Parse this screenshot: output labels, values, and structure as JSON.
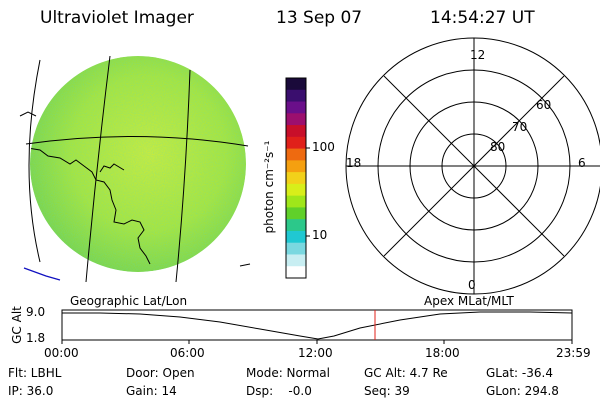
{
  "header": {
    "instrument": "Ultraviolet Imager",
    "date": "13 Sep 07",
    "time": "14:54:27 UT"
  },
  "colorbar": {
    "unit_label": "photon cm⁻²s⁻¹",
    "tick_labels": [
      "100",
      "10"
    ],
    "colors": [
      "#1a0a3a",
      "#3a0e6e",
      "#6a0f8a",
      "#9c0f6e",
      "#c80f2a",
      "#e0201a",
      "#ee6a10",
      "#f5a010",
      "#f2d11a",
      "#d8ee1a",
      "#a0e61a",
      "#60d02a",
      "#2cc88a",
      "#20c8d2",
      "#7ad8e0",
      "#c8eef2",
      "#ffffff"
    ]
  },
  "globe": {
    "disk_color": "#b4e62a"
  },
  "polar_plot": {
    "mlt_labels": {
      "top": "12",
      "left": "18",
      "right": "6",
      "bottom": "0"
    },
    "lat_labels": [
      "60",
      "70",
      "80"
    ]
  },
  "timeline": {
    "left_label": "Geographic Lat/Lon",
    "right_label": "Apex MLat/MLT",
    "axis_title": "GC Alt",
    "y_ticks": [
      "9.0",
      "1.8"
    ],
    "x_ticks": [
      "00:00",
      "06:00",
      "12:00",
      "18:00",
      "23:59"
    ],
    "marker_color": "#e0201a"
  },
  "status": {
    "filter": "Flt: LBHL",
    "ip": "IP: 36.0",
    "door": "Door: Open",
    "gain": "Gain: 14",
    "mode": "Mode: Normal",
    "dsp": "Dsp:    -0.0",
    "gc_alt": "GC Alt: 4.7 Re",
    "seq": "Seq: 39",
    "glat": "GLat: -36.4",
    "glon": "GLon: 294.8"
  }
}
